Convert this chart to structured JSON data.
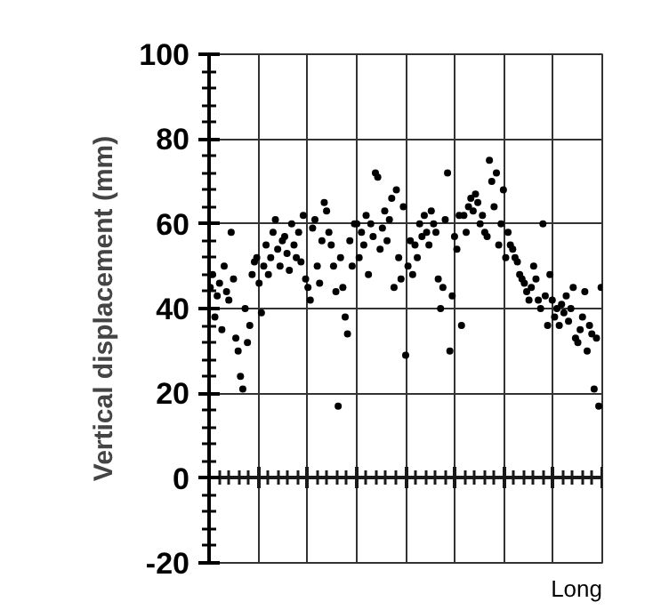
{
  "chart_data": {
    "type": "scatter",
    "ylabel": "Vertical displacement (mm)",
    "annotations": [
      "Long"
    ],
    "ylim": [
      -20,
      100
    ],
    "categories": [
      null,
      null,
      null,
      null,
      null,
      null,
      null,
      null,
      null,
      null,
      null,
      null,
      null,
      null,
      null,
      null,
      null,
      null,
      null,
      null,
      null,
      null,
      null,
      null,
      null,
      null,
      null,
      null,
      null,
      null,
      null,
      null,
      null,
      null,
      null,
      null,
      null,
      null,
      null,
      null,
      null,
      null,
      null,
      null,
      null,
      null,
      null,
      null,
      null,
      null,
      null,
      null,
      null,
      null,
      null,
      null,
      null,
      null,
      null,
      null,
      null,
      null,
      null,
      null,
      null,
      null,
      null,
      null,
      null,
      null,
      null,
      null,
      null,
      null,
      null,
      null,
      null,
      null,
      null,
      null,
      null,
      null,
      null,
      null,
      null,
      null,
      null,
      null,
      null,
      null,
      null,
      null,
      null,
      null,
      null,
      null,
      null,
      null,
      null,
      null,
      null,
      null,
      null,
      null,
      null,
      null,
      null,
      null,
      null,
      null,
      null,
      null,
      null,
      null,
      null,
      null,
      null,
      null,
      null,
      null,
      null,
      null,
      null,
      null,
      null,
      null,
      null,
      null,
      null,
      null,
      null,
      null,
      null,
      null,
      null,
      null,
      null,
      null,
      null,
      null,
      null,
      null,
      null,
      null,
      null,
      null,
      null,
      null,
      null,
      null,
      null,
      null,
      null,
      null,
      null,
      null,
      null,
      null,
      null,
      null,
      null,
      null,
      null,
      null,
      null,
      null,
      null,
      null,
      null
    ],
    "yticks": [
      -20,
      0,
      20,
      40,
      60,
      80,
      100
    ],
    "tick_labels": "y",
    "grid": true,
    "marker": "circle",
    "series": [
      {
        "color": "#000000",
        "values": [
          45,
          48,
          38,
          43,
          46,
          35,
          50,
          44,
          42,
          58,
          47,
          33,
          30,
          24,
          21,
          40,
          32,
          36,
          48,
          51,
          52,
          46,
          39,
          50,
          55,
          48,
          52,
          58,
          61,
          54,
          50,
          56,
          57,
          53,
          49,
          60,
          55,
          52,
          58,
          51,
          62,
          47,
          45,
          42,
          59,
          61,
          50,
          46,
          56,
          65,
          63,
          58,
          55,
          50,
          44,
          17,
          52,
          45,
          38,
          34,
          56,
          50,
          60,
          60,
          52,
          58,
          55,
          62,
          48,
          60,
          57,
          72,
          71,
          54,
          59,
          63,
          56,
          61,
          66,
          45,
          68,
          52,
          47,
          64,
          29,
          50,
          56,
          48,
          55,
          52,
          60,
          57,
          62,
          58,
          55,
          63,
          60,
          58,
          47,
          40,
          45,
          61,
          72,
          30,
          43,
          57,
          54,
          62,
          36,
          62,
          58,
          64,
          66,
          63,
          67,
          65,
          60,
          62,
          58,
          57,
          75,
          70,
          64,
          72,
          55,
          60,
          68,
          52,
          58,
          55,
          54,
          52,
          51,
          48,
          47,
          46,
          44,
          42,
          45,
          50,
          47,
          42,
          40,
          60,
          43,
          36,
          48,
          42,
          38,
          40,
          36,
          41,
          39,
          43,
          37,
          40,
          45,
          33,
          32,
          35,
          38,
          44,
          30,
          36,
          34,
          21,
          33,
          17,
          45
        ]
      }
    ]
  }
}
